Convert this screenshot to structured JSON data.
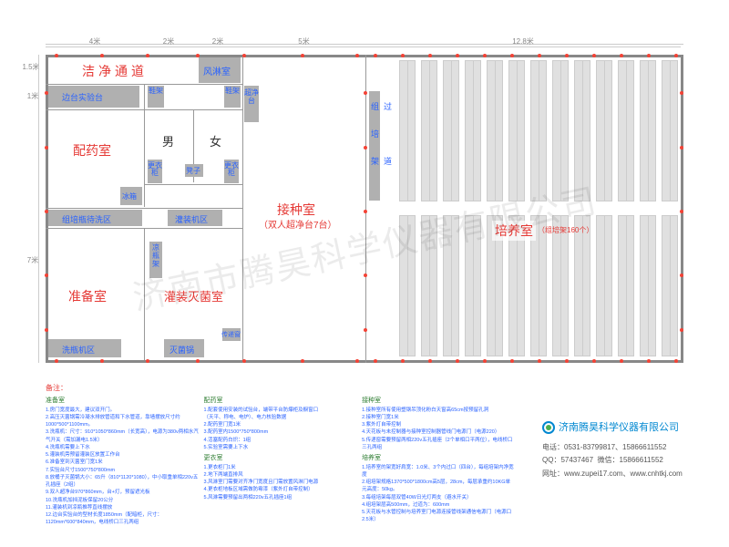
{
  "dims": {
    "top": [
      "4米",
      "2米",
      "2米",
      "5米",
      "12.8米"
    ],
    "left": [
      "1.5米",
      "1米",
      "",
      "",
      "7米"
    ]
  },
  "rooms": {
    "corridor": "洁净通道",
    "shower": "风淋室",
    "bench": "边台实验台",
    "shoe1": "鞋架",
    "shoe2": "鞋架",
    "clean_bench": "超净台",
    "pharmacy": "配药室",
    "male": "男",
    "female": "女",
    "changing1": "更衣柜",
    "changing2": "更衣柜",
    "stool": "凳子",
    "fridge": "冰箱",
    "bottle_wash": "组培瓶待洗区",
    "fill_area": "灌装机区",
    "prep": "准备室",
    "rack_cool": "凉瓶架",
    "sterilize": "灌装灭菌室",
    "wash_area": "洗瓶机区",
    "autoclave": "灭菌锅",
    "transfer": "传递窗",
    "inoculate": "接种室",
    "inoculate_sub": "（双人超净台7台）",
    "culture": "培养室",
    "culture_sub": "（组培架160个）",
    "rack_label1": "组",
    "rack_label2": "培",
    "rack_label3": "架",
    "rack_label4": "道",
    "rack_label0": "过"
  },
  "notes": {
    "title": "备注：",
    "col1": {
      "t1": "准备室",
      "l1": [
        "1.房门宽度最大，建议双开门。",
        "2.高压灭菌锅需冷凝水排放管道和下水管道，靠墙摆放尺寸约1000*500*1100mm。",
        "3.洗瓶机：尺寸：910*1050*860mm（长宽高），电源为380v两相水汽气开关（需加漏电1.5米）",
        "4.洗瓶机需要上下水",
        "5.灌装机旁预留灌装区放置工作台",
        "6.准备室到灭菌室门宽1米",
        "7.实验台尺寸1500*750*800mm",
        "8.放桶子灭菌锅大小：65升（810*1120*1080），中小取重单相220v五孔插座（2组）",
        "9.双人超净台970*860mm，台+灯，预留遮光板",
        "10.洗瓶机加挡泥板保留20公分",
        "11.灌装机到凉瓶推荐直线摆放",
        "12.边台实验台的型材长度1850mm（配暗柜，尺寸：1120mm*600*840mm，电线桥口三孔两组"
      ]
    },
    "col2": {
      "t1": "配药室",
      "l1": [
        "1.配套使用安装的试验台，端带平台防爆柜及橱窗口",
        "（天平、称电、电炉）、电力核验数据",
        "2.配药室门宽1米",
        "3.配药室内1500*750*800mm",
        "4.活塞配药白炽：1组",
        "5.实验室需要上下水"
      ],
      "t2": "更衣室",
      "l2": [
        "1.更衣柜门1米",
        "2.地下两端直排风",
        "3.风淋室门需要对齐净门宽度且门需放置风淋门电源",
        "4.更衣柜地板区域需做防霉漆（紫外灯自带控制）",
        "5.风淋需要预留出两相220v五孔插座1组"
      ]
    },
    "col3": {
      "t1": "接种室",
      "l1": [
        "1.接种室所有使用塑钢吊顶化粉白天窗高65cm按预留孔洞",
        "2.接种室门宽1米",
        "3.紫外灯自带控制",
        "4.天花板与未控制器与接种室控制器管线门电源门（电源220）",
        "5.传递窗需要预留两相220v五孔插座（2个单相口平两位），电线桥口三孔两组"
      ],
      "t2": "培养室",
      "l2": [
        "1.培养室的架宽好肩宽：1.0米、3个内过口（四台），每组培架内净宽度",
        "2.组培架规格1370*500*1800cm高5层，28cm，每层承重约10KG单元高度：50kg。",
        "3.每组培架每层双管40W日光灯两支（避水开关）",
        "4.组培架层高500mm，过道为：600mm",
        "5.天花板与水管控制与培养室门电源连接管线架通信电源门（电源口2.5米）"
      ]
    }
  },
  "company": {
    "name": "济南腾昊科学仪器有限公司",
    "phone_label": "电话：",
    "phone": "0531-83799817、15866611552",
    "qq_label": "QQ：",
    "qq": "57437467",
    "wechat_label": "微信：",
    "wechat": "15866611552",
    "web_label": "网址：",
    "web": "www.zupei17.com、www.cnhtkj.com"
  },
  "watermark": "济南市腾昊科学仪器有限公司"
}
